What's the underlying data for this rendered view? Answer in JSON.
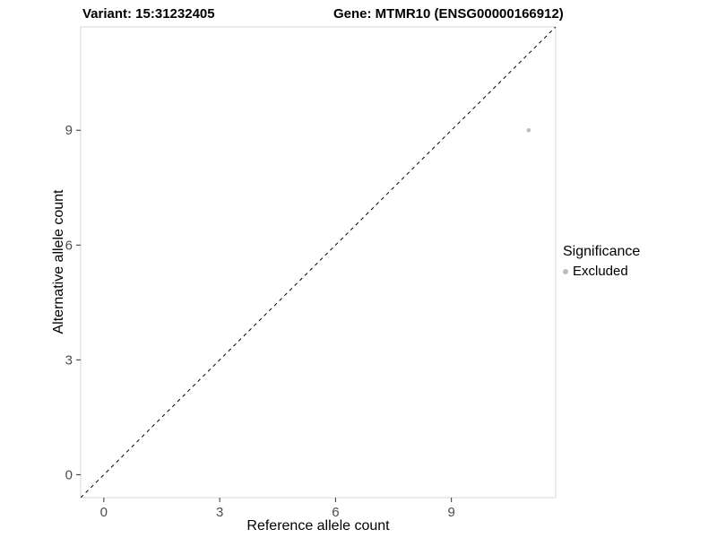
{
  "chart_data": {
    "type": "scatter",
    "title_left": "Variant: 15:31232405",
    "title_right": "Gene: MTMR10 (ENSG00000166912)",
    "xlabel": "Reference allele count",
    "ylabel": "Alternative allele count",
    "xlim": [
      -0.6,
      11.7
    ],
    "ylim": [
      -0.6,
      11.7
    ],
    "xticks": [
      0,
      3,
      6,
      9
    ],
    "yticks": [
      0,
      3,
      6,
      9
    ],
    "grid": "off",
    "points": [
      {
        "x": 11,
        "y": 9,
        "series": "Excluded"
      }
    ],
    "identity_line": {
      "style": "dashed",
      "from": [
        -0.6,
        -0.6
      ],
      "to": [
        11.7,
        11.7
      ],
      "color": "#000000"
    },
    "legend": {
      "position": "right",
      "title": "Significance",
      "entries": [
        {
          "label": "Excluded",
          "color": "#bdbdbd"
        }
      ]
    },
    "colors": {
      "point": "#bdbdbd",
      "panel_border": "#d9d9d9",
      "tick": "#333333",
      "axis_text": "#4d4d4d",
      "background": "#ffffff"
    }
  }
}
